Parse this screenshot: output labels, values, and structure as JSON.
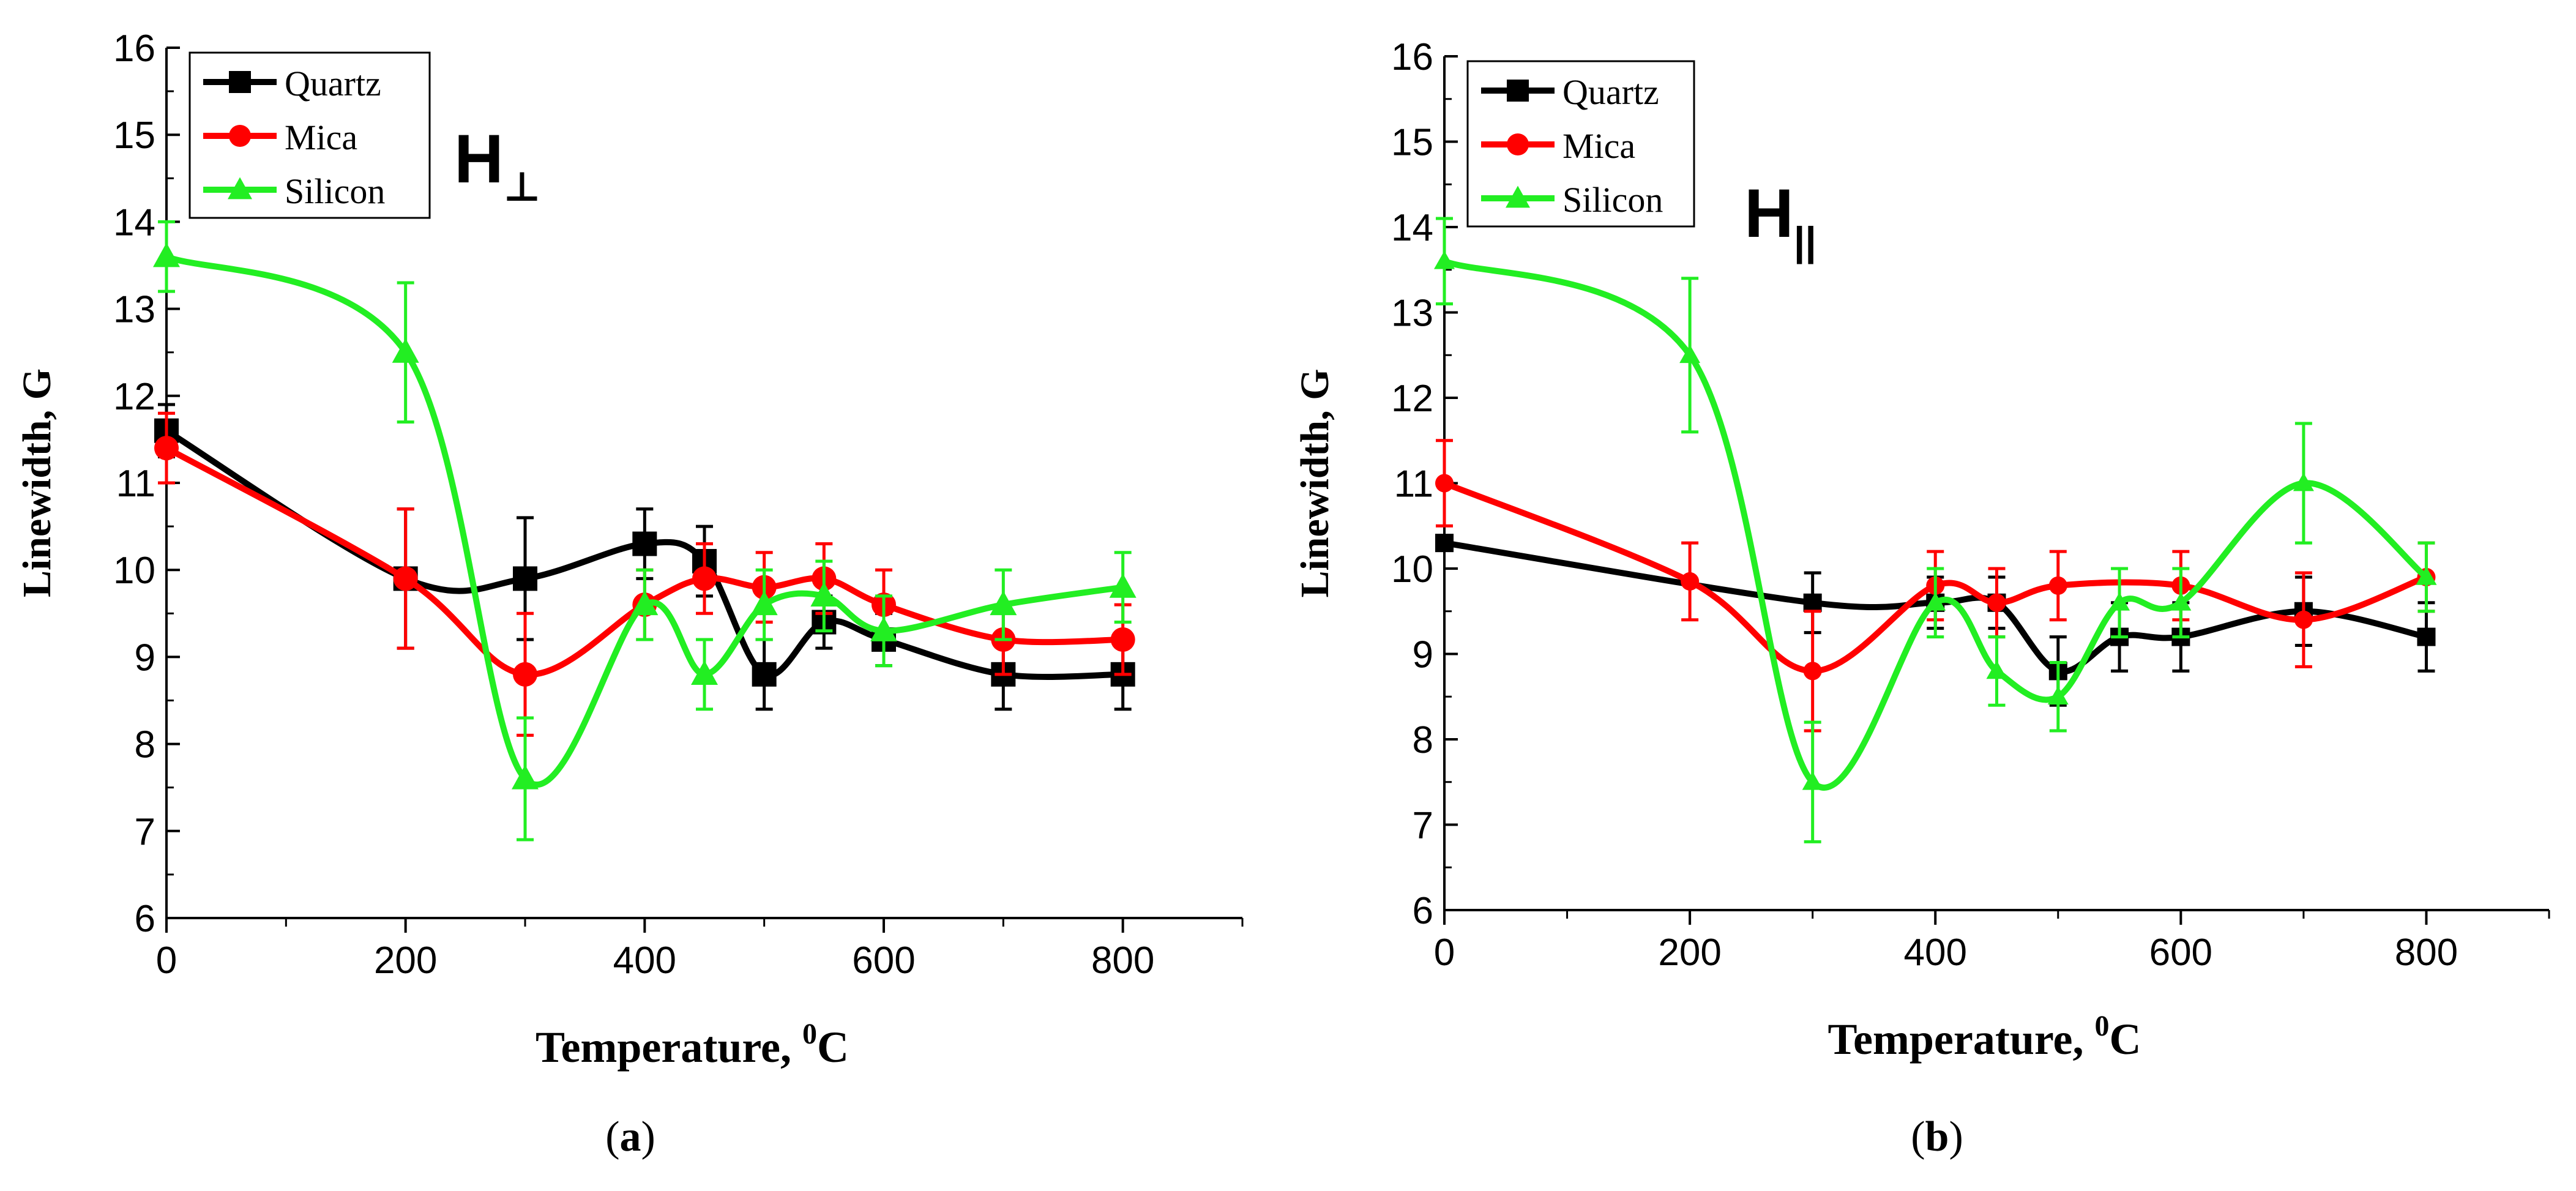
{
  "chart_data": [
    {
      "panel_label": "(a)",
      "panel_letter": "a",
      "type": "line",
      "xlabel": "Temperature, ",
      "xlabel_sup": "0",
      "xlabel_unit": "C",
      "ylabel": "Linewidth, G",
      "xlim": [
        0,
        900
      ],
      "ylim": [
        6,
        16
      ],
      "xticks": [
        0,
        200,
        400,
        600,
        800
      ],
      "yticks": [
        6,
        7,
        8,
        9,
        10,
        11,
        12,
        13,
        14,
        15,
        16
      ],
      "grid": false,
      "legend_placement": "top-left",
      "annotation": {
        "main": "H",
        "sub": "⊥"
      },
      "series": [
        {
          "name": "Quartz",
          "color": "#000000",
          "marker": "square",
          "x": [
            0,
            200,
            300,
            400,
            450,
            500,
            550,
            600,
            700,
            800
          ],
          "y": [
            11.6,
            9.9,
            9.9,
            10.3,
            10.1,
            8.8,
            9.4,
            9.2,
            8.8,
            8.8
          ],
          "err": [
            0.3,
            0.8,
            0.7,
            0.4,
            0.4,
            0.4,
            0.3,
            0.3,
            0.4,
            0.4
          ]
        },
        {
          "name": "Mica",
          "color": "#ff0000",
          "marker": "circle",
          "x": [
            0,
            200,
            300,
            400,
            450,
            500,
            550,
            600,
            700,
            800
          ],
          "y": [
            11.4,
            9.9,
            8.8,
            9.6,
            9.9,
            9.8,
            9.9,
            9.6,
            9.2,
            9.2
          ],
          "err": [
            0.4,
            0.8,
            0.7,
            0.4,
            0.4,
            0.4,
            0.4,
            0.4,
            0.4,
            0.4
          ]
        },
        {
          "name": "Silicon",
          "color": "#22ee22",
          "marker": "triangle",
          "x": [
            0,
            200,
            300,
            400,
            450,
            500,
            550,
            600,
            700,
            800
          ],
          "y": [
            13.6,
            12.5,
            7.6,
            9.6,
            8.8,
            9.6,
            9.7,
            9.3,
            9.6,
            9.8
          ],
          "err": [
            0.4,
            0.8,
            0.7,
            0.4,
            0.4,
            0.4,
            0.4,
            0.4,
            0.4,
            0.4
          ]
        }
      ]
    },
    {
      "panel_label": "(b)",
      "panel_letter": "b",
      "type": "line",
      "xlabel": "Temperature, ",
      "xlabel_sup": "0",
      "xlabel_unit": "C",
      "ylabel": "Linewidth, G",
      "xlim": [
        0,
        900
      ],
      "ylim": [
        6,
        16
      ],
      "xticks": [
        0,
        200,
        400,
        600,
        800
      ],
      "yticks": [
        6,
        7,
        8,
        9,
        10,
        11,
        12,
        13,
        14,
        15,
        16
      ],
      "grid": false,
      "legend_placement": "top-left",
      "annotation": {
        "main": "H",
        "sub": "||"
      },
      "series": [
        {
          "name": "Quartz",
          "color": "#000000",
          "marker": "square",
          "x": [
            0,
            300,
            400,
            450,
            500,
            550,
            600,
            700,
            800
          ],
          "y": [
            10.3,
            9.6,
            9.6,
            9.6,
            8.8,
            9.2,
            9.2,
            9.5,
            9.2
          ],
          "err": [
            0.0,
            0.35,
            0.3,
            0.3,
            0.4,
            0.4,
            0.4,
            0.4,
            0.4
          ]
        },
        {
          "name": "Mica",
          "color": "#ff0000",
          "marker": "circle",
          "x": [
            0,
            200,
            300,
            400,
            450,
            500,
            600,
            700,
            800
          ],
          "y": [
            11.0,
            9.85,
            8.8,
            9.8,
            9.6,
            9.8,
            9.8,
            9.4,
            9.9
          ],
          "err": [
            0.5,
            0.45,
            0.7,
            0.4,
            0.4,
            0.4,
            0.4,
            0.55,
            0.4
          ]
        },
        {
          "name": "Silicon",
          "color": "#22ee22",
          "marker": "triangle",
          "x": [
            0,
            200,
            300,
            400,
            450,
            500,
            550,
            600,
            700,
            800
          ],
          "y": [
            13.6,
            12.5,
            7.5,
            9.6,
            8.8,
            8.5,
            9.6,
            9.6,
            11.0,
            9.9
          ],
          "err": [
            0.5,
            0.9,
            0.7,
            0.4,
            0.4,
            0.4,
            0.4,
            0.4,
            0.7,
            0.4
          ]
        }
      ]
    }
  ]
}
